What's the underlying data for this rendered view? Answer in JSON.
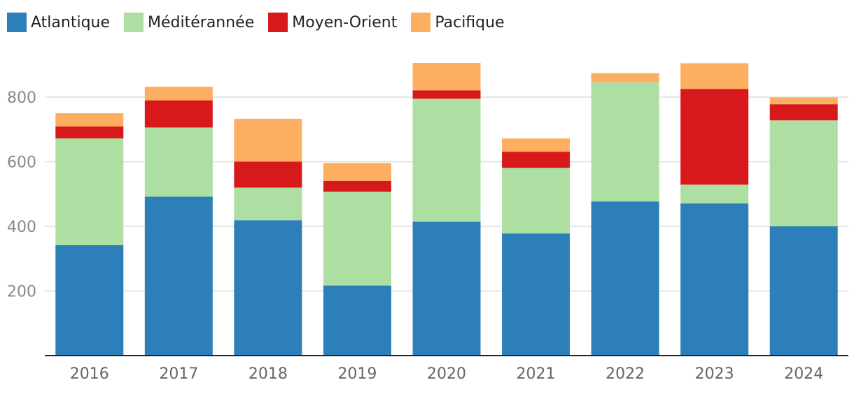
{
  "chart_data": {
    "type": "bar",
    "stacked": true,
    "categories": [
      "2016",
      "2017",
      "2018",
      "2019",
      "2020",
      "2021",
      "2022",
      "2023",
      "2024"
    ],
    "series": [
      {
        "name": "Atlantique",
        "color": "#2c7fb8",
        "values": [
          342,
          492,
          419,
          217,
          414,
          378,
          477,
          471,
          400
        ]
      },
      {
        "name": "Méditérannée",
        "color": "#addfa3",
        "values": [
          330,
          214,
          101,
          290,
          381,
          203,
          369,
          58,
          328
        ]
      },
      {
        "name": "Moyen-Orient",
        "color": "#d7191c",
        "values": [
          37,
          84,
          80,
          34,
          26,
          50,
          0,
          296,
          50
        ]
      },
      {
        "name": "Pacifique",
        "color": "#fdae61",
        "values": [
          41,
          42,
          133,
          55,
          85,
          41,
          28,
          80,
          21
        ]
      }
    ],
    "yticks": [
      200,
      400,
      600,
      800
    ],
    "ylim": [
      0,
      920
    ],
    "grid": true,
    "legend_position": "top-left",
    "title": "",
    "xlabel": "",
    "ylabel": ""
  }
}
